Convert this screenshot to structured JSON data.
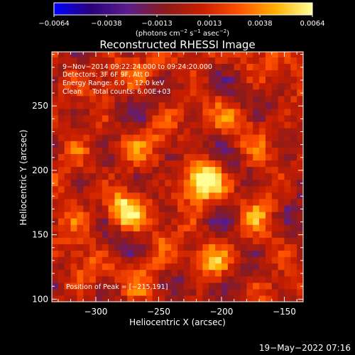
{
  "chart_data": {
    "type": "heatmap",
    "title": "Reconstructed RHESSI Image",
    "xlabel": "Heliocentric X (arcsec)",
    "ylabel": "Heliocentric Y (arcsec)",
    "xlim": [
      -335,
      -135
    ],
    "ylim": [
      98,
      292
    ],
    "x_ticks": [
      -300,
      -250,
      -200,
      -150
    ],
    "x_tick_labels": [
      "−300",
      "−250",
      "−200",
      "−150"
    ],
    "y_ticks": [
      100,
      150,
      200,
      250
    ],
    "y_tick_labels": [
      "100",
      "150",
      "200",
      "250"
    ],
    "colorbar": {
      "range": [
        -0.0064,
        0.0064
      ],
      "ticks": [
        -0.0064,
        -0.0038,
        -0.0013,
        0.0013,
        0.0038,
        0.0064
      ],
      "tick_labels": [
        "−0.0064",
        "−0.0038",
        "−0.0013",
        "0.0013",
        "0.0038",
        "0.0064"
      ],
      "units_parts": [
        "(photons cm",
        "−2",
        " s",
        "−1",
        " asec",
        "−2",
        ")"
      ],
      "colormap": [
        "#0000ff",
        "#2a007a",
        "#5a1e8c",
        "#8c1a1a",
        "#c81e00",
        "#ff5000",
        "#ffb000",
        "#ffff96"
      ]
    },
    "sources": [
      {
        "x": -216,
        "y": 191,
        "peak": 0.0064
      },
      {
        "x": -280,
        "y": 167,
        "peak": 0.005
      },
      {
        "x": -210,
        "y": 125,
        "peak": 0.003
      }
    ],
    "annotations": {
      "line1": "9−Nov−2014 09:22:24.000 to 09:24:20.000",
      "line2": "Detectors: 3F 6F 9F, Att 0",
      "line3": "Energy Range: 6.0 − 12.0 keV",
      "line4": "Clean     Total counts: 6.00E+03",
      "peak": "Position of Peak = [−215,191]"
    },
    "timestamp": "19−May−2022 07:16"
  }
}
